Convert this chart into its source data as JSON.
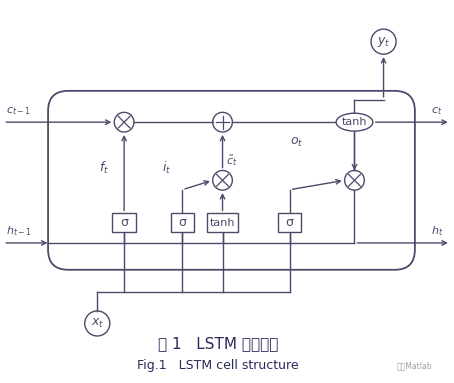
{
  "bg_color": "#ffffff",
  "line_color": "#4a4a6a",
  "title_cn": "图 1   LSTM 单元结构",
  "title_en": "Fig.1   LSTM cell structure",
  "watermark": "天天Matlab"
}
